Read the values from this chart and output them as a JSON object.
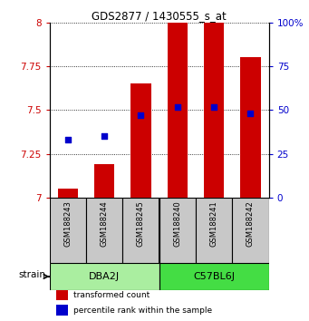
{
  "title": "GDS2877 / 1430555_s_at",
  "samples": [
    "GSM188243",
    "GSM188244",
    "GSM188245",
    "GSM188240",
    "GSM188241",
    "GSM188242"
  ],
  "transformed_counts": [
    7.05,
    7.19,
    7.65,
    8.0,
    8.0,
    7.8
  ],
  "percentile_ranks": [
    33,
    35,
    47,
    52,
    52,
    48
  ],
  "bar_bottom": 7.0,
  "ylim_left": [
    7.0,
    8.0
  ],
  "ylim_right": [
    0,
    100
  ],
  "yticks_left": [
    7.0,
    7.25,
    7.5,
    7.75,
    8.0
  ],
  "ytick_labels_left": [
    "7",
    "7.25",
    "7.5",
    "7.75",
    "8"
  ],
  "yticks_right": [
    0,
    25,
    50,
    75,
    100
  ],
  "ytick_labels_right": [
    "0",
    "25",
    "50",
    "75",
    "100%"
  ],
  "groups": [
    {
      "label": "DBA2J",
      "start": 0,
      "end": 2,
      "color": "#AAEEA0"
    },
    {
      "label": "C57BL6J",
      "start": 3,
      "end": 5,
      "color": "#44DD44"
    }
  ],
  "bar_color": "#CC0000",
  "dot_color": "#0000CC",
  "bg_color": "#FFFFFF",
  "left_tick_color": "#CC0000",
  "right_tick_color": "#0000CC",
  "sample_box_color": "#C8C8C8",
  "bar_width": 0.55,
  "dot_size": 22,
  "legend_items": [
    {
      "color": "#CC0000",
      "label": "transformed count"
    },
    {
      "color": "#0000CC",
      "label": "percentile rank within the sample"
    }
  ]
}
